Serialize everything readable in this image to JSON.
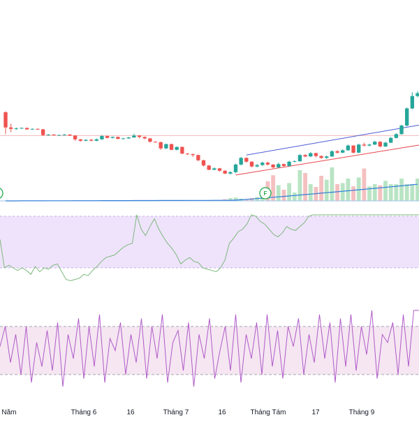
{
  "chart_data": [
    {
      "type": "candlestick",
      "panel": "price",
      "colors": {
        "up": "#26a69a",
        "down": "#ef5350",
        "reference_line": "#f6b7b7",
        "upper_trend": "#4a5bd4",
        "lower_trend": "#e8434b",
        "moving_average": "#2f7ed8",
        "volume_up": "#b9e4c4",
        "volume_down": "#f4c0c0"
      },
      "candles": [
        [
          6.0,
          2.8,
          1.4,
          6.2
        ],
        [
          2.8,
          2.5,
          1.8,
          3.6
        ],
        [
          2.5,
          2.6,
          2.3,
          2.8
        ],
        [
          2.6,
          2.7,
          2.5,
          2.8
        ],
        [
          2.7,
          2.4,
          2.3,
          2.8
        ],
        [
          2.4,
          2.5,
          2.3,
          2.6
        ],
        [
          2.5,
          2.4,
          2.3,
          2.6
        ],
        [
          2.4,
          1.2,
          1.0,
          2.5
        ],
        [
          1.2,
          1.3,
          1.1,
          1.4
        ],
        [
          1.3,
          1.2,
          1.1,
          1.4
        ],
        [
          1.2,
          1.2,
          1.1,
          1.3
        ],
        [
          1.2,
          1.3,
          1.1,
          1.4
        ],
        [
          1.3,
          1.1,
          1.0,
          1.4
        ],
        [
          1.1,
          0.3,
          0.0,
          1.2
        ],
        [
          0.3,
          0.0,
          -0.2,
          0.4
        ],
        [
          0.0,
          0.2,
          -0.1,
          0.3
        ],
        [
          0.2,
          0.0,
          -0.1,
          0.4
        ],
        [
          0.0,
          0.3,
          -0.1,
          0.5
        ],
        [
          0.3,
          1.0,
          0.2,
          1.2
        ],
        [
          1.0,
          0.6,
          0.5,
          1.1
        ],
        [
          0.6,
          0.8,
          0.5,
          0.9
        ],
        [
          0.8,
          0.4,
          0.3,
          0.9
        ],
        [
          0.4,
          0.5,
          0.3,
          0.6
        ],
        [
          0.5,
          0.7,
          0.4,
          0.8
        ],
        [
          0.7,
          1.1,
          0.6,
          1.5
        ],
        [
          1.1,
          0.8,
          0.5,
          1.2
        ],
        [
          0.8,
          0.5,
          0.3,
          0.9
        ],
        [
          0.5,
          -0.2,
          -0.4,
          0.6
        ],
        [
          -0.2,
          -0.3,
          -0.4,
          -0.1
        ],
        [
          -0.3,
          -1.6,
          -1.9,
          -0.2
        ],
        [
          -1.6,
          -0.7,
          -1.8,
          -0.6
        ],
        [
          -0.7,
          -1.9,
          -2.0,
          -0.6
        ],
        [
          -1.9,
          -1.3,
          -2.0,
          -1.2
        ],
        [
          -1.3,
          -2.7,
          -2.8,
          -1.2
        ],
        [
          -2.7,
          -2.8,
          -3.0,
          -2.6
        ],
        [
          -2.8,
          -3.0,
          -3.4,
          -2.7
        ],
        [
          -3.0,
          -4.1,
          -4.3,
          -2.9
        ],
        [
          -4.1,
          -5.2,
          -5.4,
          -4.0
        ],
        [
          -5.2,
          -6.1,
          -6.2,
          -5.1
        ],
        [
          -6.1,
          -5.8,
          -6.2,
          -5.6
        ],
        [
          -5.8,
          -6.3,
          -6.5,
          -5.7
        ],
        [
          -6.3,
          -6.9,
          -7.0,
          -6.2
        ],
        [
          -6.9,
          -6.6,
          -7.1,
          -6.4
        ],
        [
          -6.6,
          -5.0,
          -6.8,
          -4.8
        ],
        [
          -5.0,
          -3.6,
          -5.2,
          -3.4
        ],
        [
          -3.6,
          -4.4,
          -4.6,
          -3.5
        ],
        [
          -4.4,
          -5.4,
          -5.6,
          -4.3
        ],
        [
          -5.4,
          -5.1,
          -5.6,
          -4.9
        ],
        [
          -5.1,
          -4.6,
          -5.3,
          -4.4
        ],
        [
          -4.6,
          -5.0,
          -5.2,
          -4.4
        ],
        [
          -5.0,
          -5.6,
          -5.8,
          -4.9
        ],
        [
          -5.6,
          -4.9,
          -5.7,
          -4.6
        ],
        [
          -4.9,
          -5.3,
          -5.5,
          -4.8
        ],
        [
          -5.3,
          -4.4,
          -5.4,
          -4.2
        ],
        [
          -4.4,
          -4.3,
          -4.5,
          -4.1
        ],
        [
          -4.3,
          -3.0,
          -4.4,
          -2.8
        ],
        [
          -3.0,
          -3.3,
          -3.5,
          -2.8
        ],
        [
          -3.3,
          -2.6,
          -3.4,
          -2.4
        ],
        [
          -2.6,
          -3.2,
          -3.5,
          -2.5
        ],
        [
          -3.2,
          -3.6,
          -3.8,
          -3.1
        ],
        [
          -3.6,
          -3.3,
          -3.8,
          -3.1
        ],
        [
          -3.3,
          -2.2,
          -3.4,
          -2.0
        ],
        [
          -2.2,
          -2.5,
          -2.7,
          -2.0
        ],
        [
          -2.5,
          -2.0,
          -2.6,
          -1.8
        ],
        [
          -2.0,
          -1.0,
          -2.1,
          -0.8
        ],
        [
          -1.0,
          -2.5,
          -2.7,
          -0.9
        ],
        [
          -2.5,
          -0.8,
          -2.6,
          -0.6
        ],
        [
          -0.8,
          -1.0,
          -1.2,
          -0.4
        ],
        [
          -1.0,
          -0.8,
          -1.2,
          -0.6
        ],
        [
          -0.8,
          -0.2,
          -0.9,
          0.0
        ],
        [
          -0.2,
          -1.2,
          -1.4,
          -0.1
        ],
        [
          -1.2,
          -0.4,
          -1.3,
          -0.2
        ],
        [
          -0.4,
          0.6,
          -0.5,
          0.8
        ],
        [
          0.6,
          1.4,
          0.5,
          1.6
        ],
        [
          1.4,
          3.2,
          1.3,
          3.4
        ],
        [
          3.2,
          6.8,
          3.0,
          7.0
        ],
        [
          6.8,
          9.4,
          6.6,
          10.2
        ],
        [
          9.4,
          10.0,
          9.2,
          10.4
        ]
      ],
      "reference_level": 1.1,
      "volume": [
        0,
        0,
        0,
        0,
        0,
        0,
        0,
        0,
        0,
        0,
        0,
        0,
        0,
        0,
        0,
        0,
        0,
        0,
        0,
        0,
        0,
        0,
        0,
        0,
        0,
        0,
        0,
        0,
        0,
        0,
        0,
        0,
        0,
        0,
        0,
        0,
        0,
        0,
        0,
        0,
        0,
        0.3,
        0.5,
        0.6,
        0.4,
        0.3,
        0.5,
        0.7,
        0.8,
        3.5,
        4.6,
        2.8,
        2.0,
        3.2,
        1.5,
        5.5,
        5.0,
        3.0,
        2.5,
        4.5,
        3.8,
        6.0,
        3.0,
        3.2,
        4.0,
        2.6,
        4.2,
        5.8,
        2.6,
        3.0,
        2.8,
        3.6,
        3.0,
        3.0,
        4.0,
        3.0,
        3.0,
        4.0
      ],
      "signal_markers": [
        "F",
        "F"
      ]
    },
    {
      "type": "line",
      "panel": "oscillator-1",
      "band": [
        30,
        70
      ],
      "colors": {
        "line": "#7cb87c",
        "band_fill": "#efe3fb",
        "band_edge": "#b39ddb"
      },
      "values": [
        52,
        30,
        32,
        30,
        28,
        30,
        28,
        25,
        31,
        27,
        30,
        29,
        32,
        33,
        27,
        21,
        20,
        21,
        22,
        25,
        24,
        28,
        31,
        35,
        38,
        39,
        40,
        43,
        46,
        48,
        49,
        100,
        60,
        55,
        62,
        68,
        60,
        54,
        49,
        45,
        40,
        33,
        36,
        38,
        35,
        34,
        30,
        29,
        28,
        27,
        30,
        36,
        49,
        53,
        58,
        60,
        64,
        72,
        70,
        66,
        64,
        60,
        56,
        54,
        57,
        62,
        60,
        59,
        62,
        65,
        70,
        73,
        72,
        78,
        83,
        82,
        88,
        92,
        88,
        86,
        85,
        88,
        90,
        84,
        80,
        79,
        83,
        88,
        82,
        78,
        74,
        72,
        75,
        80,
        82,
        86
      ]
    },
    {
      "type": "line",
      "panel": "oscillator-2",
      "band": [
        20,
        80
      ],
      "colors": {
        "line": "#b05bc8",
        "band_fill": "#f5e6f2",
        "band_edge": "#8a8a9a"
      },
      "values": [
        55,
        80,
        35,
        70,
        20,
        80,
        10,
        60,
        30,
        75,
        25,
        85,
        5,
        70,
        40,
        90,
        15,
        80,
        30,
        95,
        10,
        65,
        50,
        85,
        20,
        70,
        35,
        90,
        15,
        80,
        40,
        95,
        10,
        60,
        75,
        25,
        85,
        5,
        70,
        40,
        90,
        15,
        50,
        80,
        25,
        95,
        10,
        70,
        40,
        85,
        20,
        95,
        30,
        75,
        15,
        80,
        55,
        90,
        20,
        70,
        35,
        95,
        40,
        85,
        10,
        90,
        30,
        95,
        25,
        80,
        45,
        100,
        15,
        70,
        60,
        85,
        20,
        95,
        30,
        100,
        100
      ]
    }
  ],
  "x_axis": {
    "ticks": [
      "ng Năm",
      "Tháng 6",
      "16",
      "Tháng 7",
      "16",
      "Tháng Tám",
      "17",
      "Tháng 9"
    ]
  }
}
